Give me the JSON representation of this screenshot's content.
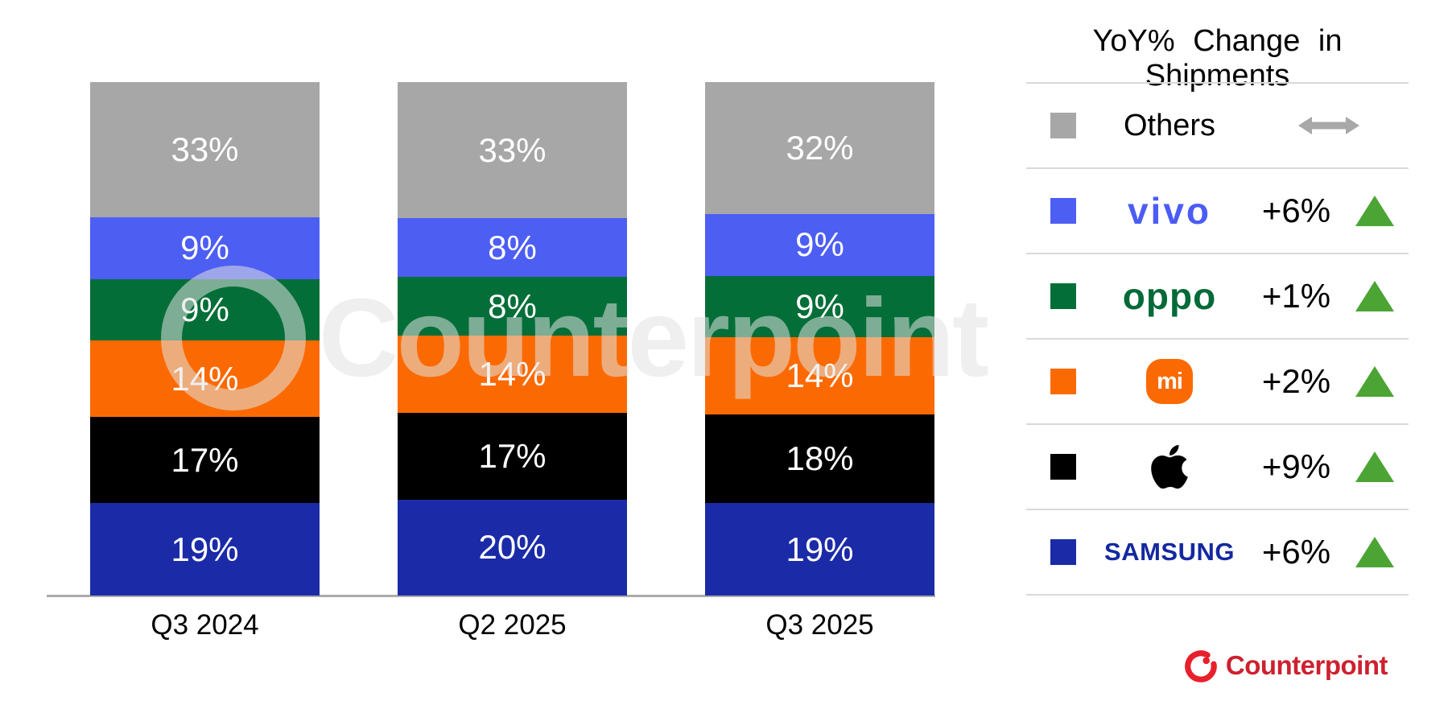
{
  "legend": {
    "title": "YoY% Change in Shipments",
    "rows": [
      {
        "brand": "Others",
        "logo_style": "plain",
        "logo_text": "Others",
        "swatch": "#A7A7A7",
        "change": "",
        "trend": "flat"
      },
      {
        "brand": "vivo",
        "logo_style": "vivo",
        "logo_text": "vivo",
        "swatch": "#4D5EF3",
        "change": "+6%",
        "trend": "up"
      },
      {
        "brand": "OPPO",
        "logo_style": "oppo",
        "logo_text": "oppo",
        "swatch": "#036E38",
        "change": "+1%",
        "trend": "up"
      },
      {
        "brand": "Xiaomi",
        "logo_style": "mi",
        "logo_text": "mi",
        "swatch": "#FB6A02",
        "change": "+2%",
        "trend": "up"
      },
      {
        "brand": "Apple",
        "logo_style": "apple",
        "logo_text": "",
        "swatch": "#000000",
        "change": "+9%",
        "trend": "up"
      },
      {
        "brand": "Samsung",
        "logo_style": "samsung",
        "logo_text": "SAMSUNG",
        "swatch": "#1B2BA7",
        "change": "+6%",
        "trend": "up"
      }
    ]
  },
  "chart_data": {
    "type": "bar",
    "stacked": true,
    "unit": "%",
    "categories": [
      "Q3 2024",
      "Q2 2025",
      "Q3 2025"
    ],
    "series": [
      {
        "name": "Samsung",
        "color": "#1B2BA7",
        "values": [
          19,
          20,
          19
        ]
      },
      {
        "name": "Apple",
        "color": "#000000",
        "values": [
          17,
          17,
          18
        ]
      },
      {
        "name": "Xiaomi",
        "color": "#FB6A02",
        "values": [
          14,
          14,
          14
        ]
      },
      {
        "name": "OPPO",
        "color": "#036E38",
        "values": [
          9,
          8,
          9
        ]
      },
      {
        "name": "vivo",
        "color": "#4D5EF3",
        "values": [
          9,
          8,
          9
        ]
      },
      {
        "name": "Others",
        "color": "#A7A7A7",
        "values": [
          33,
          33,
          32
        ]
      }
    ],
    "value_labels": [
      [
        "33%",
        "9%",
        "9%",
        "14%",
        "17%",
        "19%"
      ],
      [
        "33%",
        "8%",
        "8%",
        "14%",
        "17%",
        "20%"
      ],
      [
        "32%",
        "9%",
        "9%",
        "14%",
        "18%",
        "19%"
      ]
    ],
    "legend_position": "right",
    "grid": false
  },
  "colors": {
    "trend_up": "#4CA434",
    "trend_flat": "#A8A8A8",
    "logo_vivo": "#4B5CF5",
    "logo_oppo": "#046A38",
    "logo_samsung": "#1428A0",
    "brand_icon_red": "#E8202C",
    "brand_text_red": "#CE202E"
  },
  "watermark": {
    "text": "Counterpoint"
  },
  "footer": {
    "brand": "Counterpoint"
  }
}
